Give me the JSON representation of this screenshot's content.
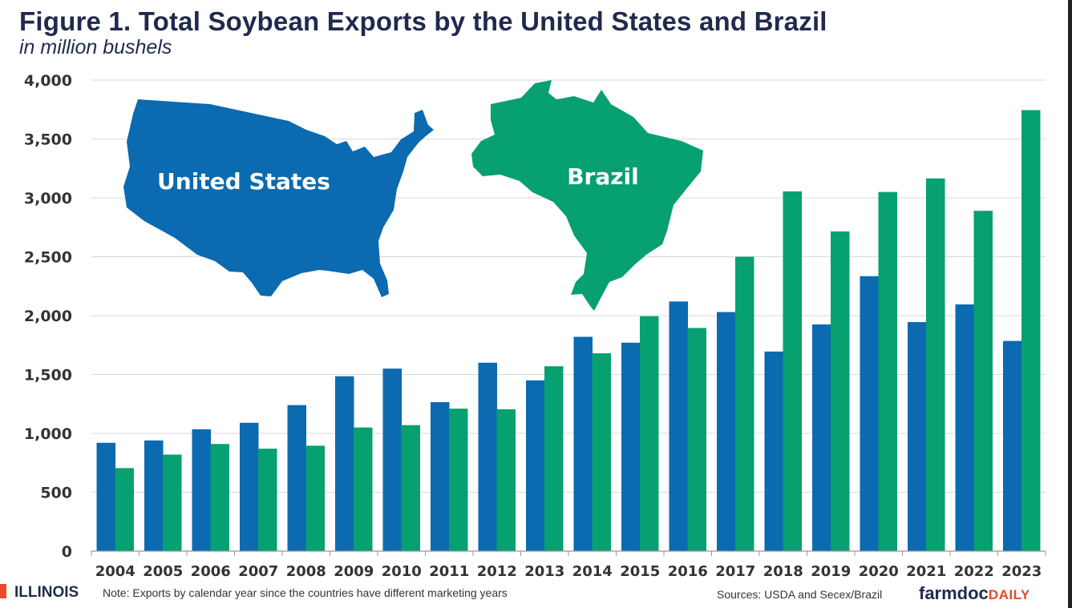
{
  "chart_data": {
    "type": "bar",
    "title": "Figure 1. Total Soybean Exports by the United States and Brazil",
    "subtitle": "in million bushels",
    "categories": [
      "2004",
      "2005",
      "2006",
      "2007",
      "2008",
      "2009",
      "2010",
      "2011",
      "2012",
      "2013",
      "2014",
      "2015",
      "2016",
      "2017",
      "2018",
      "2019",
      "2020",
      "2021",
      "2022",
      "2023"
    ],
    "series": [
      {
        "name": "United States",
        "color": "#0b6ab0",
        "values": [
          920,
          940,
          1035,
          1090,
          1240,
          1485,
          1550,
          1265,
          1600,
          1450,
          1820,
          1770,
          2120,
          2030,
          1695,
          1925,
          2335,
          1945,
          2095,
          1785
        ]
      },
      {
        "name": "Brazil",
        "color": "#07a070",
        "values": [
          705,
          820,
          910,
          870,
          895,
          1050,
          1070,
          1210,
          1205,
          1570,
          1680,
          1995,
          1895,
          2500,
          3055,
          2715,
          3050,
          3165,
          2890,
          3745
        ]
      }
    ],
    "ylim": [
      0,
      4000
    ],
    "yticks": [
      0,
      500,
      1000,
      1500,
      2000,
      2500,
      3000,
      3500,
      4000
    ],
    "ytick_labels": [
      "0",
      "500",
      "1,000",
      "1,500",
      "2,000",
      "2,500",
      "3,000",
      "3,500",
      "4,000"
    ],
    "grid": true,
    "map_labels": {
      "us": "United States",
      "brazil": "Brazil"
    }
  },
  "footer": {
    "logo": "ILLINOIS",
    "note": "Note: Exports by calendar year since the countries have different marketing years",
    "source": "Sources: USDA and Secex/Brazil",
    "brand_main": "farmdoc",
    "brand_sub": "DAILY"
  }
}
